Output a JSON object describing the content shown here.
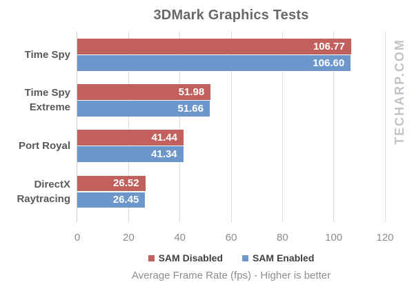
{
  "chart_data": {
    "type": "bar",
    "orientation": "horizontal",
    "title": "3DMark Graphics Tests",
    "xlabel": "Average Frame Rate (fps) - Higher is better",
    "categories": [
      "Time Spy",
      "Time Spy\nExtreme",
      "Port Royal",
      "DirectX\nRaytracing"
    ],
    "series": [
      {
        "name": "SAM Disabled",
        "color": "#c1605d",
        "values": [
          106.77,
          51.98,
          41.44,
          26.52
        ]
      },
      {
        "name": "SAM Enabled",
        "color": "#6d96cb",
        "values": [
          106.6,
          51.66,
          41.34,
          26.45
        ]
      }
    ],
    "xlim": [
      0,
      120
    ],
    "xticks": [
      0,
      20,
      40,
      60,
      80,
      100,
      120
    ],
    "grid": true,
    "legend_position": "bottom",
    "value_labels": true,
    "value_label_decimals": 2,
    "colors": {
      "background": "#ffffff",
      "gridline": "#dcdcdc",
      "axis_line": "#c9c9c9",
      "title_text": "#686868",
      "category_text": "#595959",
      "tick_text": "#8c8c8c",
      "legend_text": "#404040",
      "xlabel_text": "#8c8c8c",
      "value_label_text": "#ffffff",
      "watermark_text": "#c2c2c8"
    }
  },
  "watermark": {
    "text": "TECHARP.COM"
  }
}
